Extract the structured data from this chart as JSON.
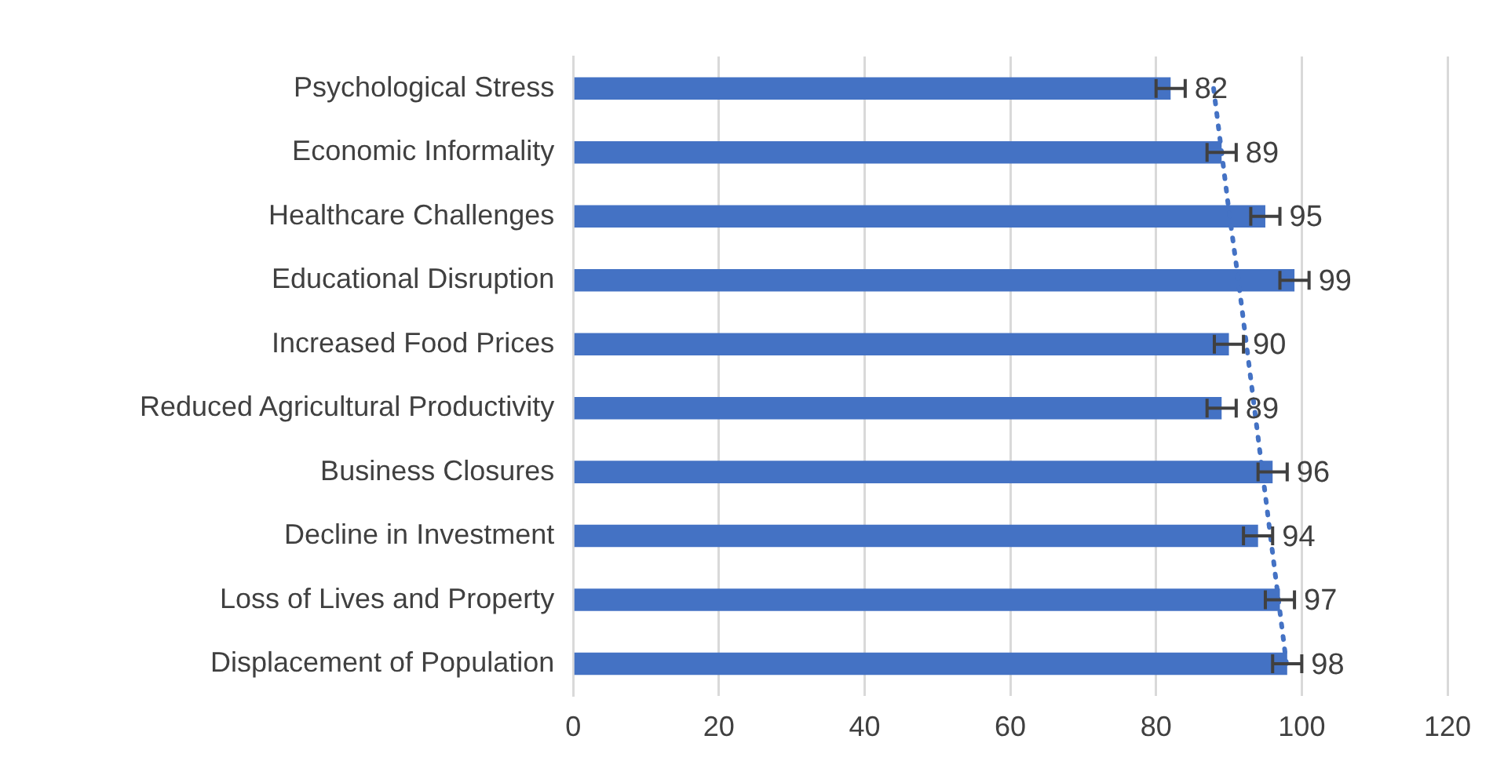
{
  "chart_data": {
    "type": "bar",
    "orientation": "horizontal",
    "categories": [
      "Psychological Stress",
      "Economic Informality",
      "Healthcare Challenges",
      "Educational Disruption",
      "Increased Food Prices",
      "Reduced Agricultural Productivity",
      "Business Closures",
      "Decline in Investment",
      "Loss of Lives and Property",
      "Displacement of Population"
    ],
    "series": [
      {
        "color": "#4472c4",
        "values": [
          82,
          89,
          95,
          99,
          90,
          89,
          96,
          94,
          97,
          98
        ],
        "errors": [
          2,
          2,
          2,
          2,
          2,
          2,
          2,
          2,
          2,
          2
        ],
        "value_labels": [
          "82",
          "89",
          "95",
          "99",
          "90",
          "89",
          "96",
          "94",
          "97",
          "98"
        ]
      },
      {
        "type": "line",
        "color": "#4472c4",
        "line_style": "dotted",
        "values": [
          87.9,
          89.0,
          90.1,
          91.3,
          92.4,
          93.5,
          94.6,
          95.7,
          96.8,
          97.9
        ]
      }
    ],
    "xlim": [
      0,
      120
    ],
    "xticks": [
      0,
      20,
      40,
      60,
      80,
      100,
      120
    ],
    "grid": "x",
    "legend": false
  }
}
